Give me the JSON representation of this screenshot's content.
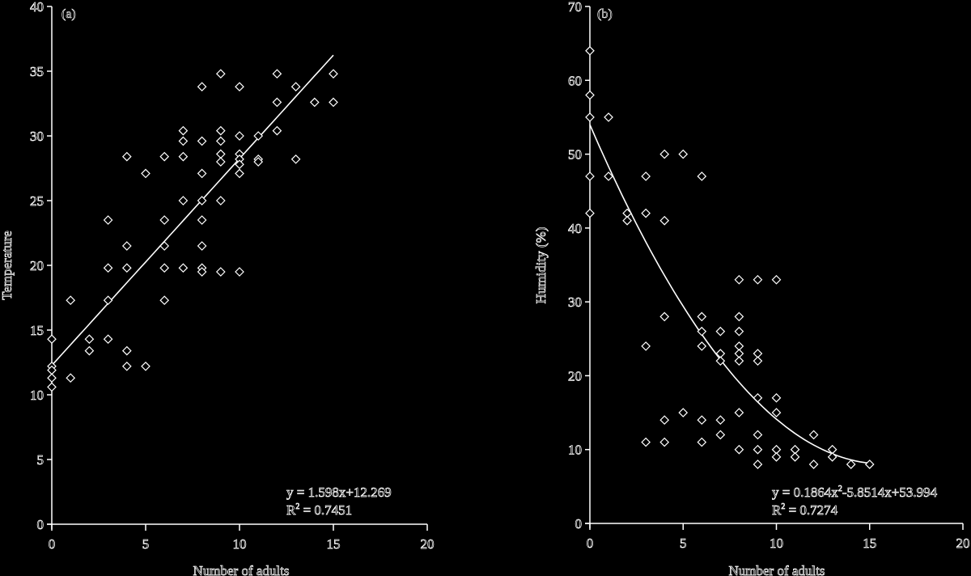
{
  "chart_data": [
    {
      "type": "scatter",
      "panel": "(a)",
      "title": "",
      "xlabel": "Number of adults",
      "ylabel": "Temperature",
      "xlim": [
        0,
        20
      ],
      "ylim": [
        0,
        40
      ],
      "xticks": [
        0,
        5,
        10,
        15,
        20
      ],
      "yticks": [
        0,
        5,
        10,
        15,
        20,
        25,
        30,
        35,
        40
      ],
      "grid": false,
      "marker": "diamond",
      "points": [
        [
          0,
          14.3
        ],
        [
          0,
          12.2
        ],
        [
          0,
          11.9
        ],
        [
          0,
          11.3
        ],
        [
          0,
          10.6
        ],
        [
          1,
          17.3
        ],
        [
          1,
          11.3
        ],
        [
          2,
          14.3
        ],
        [
          2,
          13.4
        ],
        [
          3,
          23.5
        ],
        [
          3,
          19.8
        ],
        [
          3,
          17.3
        ],
        [
          3,
          14.3
        ],
        [
          4,
          28.4
        ],
        [
          4,
          21.5
        ],
        [
          4,
          19.8
        ],
        [
          4,
          13.4
        ],
        [
          4,
          12.2
        ],
        [
          5,
          27.1
        ],
        [
          5,
          12.2
        ],
        [
          6,
          28.4
        ],
        [
          6,
          23.5
        ],
        [
          6,
          21.5
        ],
        [
          6,
          19.8
        ],
        [
          6,
          17.3
        ],
        [
          7,
          30.4
        ],
        [
          7,
          29.6
        ],
        [
          7,
          28.4
        ],
        [
          7,
          25.0
        ],
        [
          7,
          19.8
        ],
        [
          8,
          33.8
        ],
        [
          8,
          29.6
        ],
        [
          8,
          27.1
        ],
        [
          8,
          25.0
        ],
        [
          8,
          23.5
        ],
        [
          8,
          21.5
        ],
        [
          8,
          19.8
        ],
        [
          8,
          19.5
        ],
        [
          9,
          34.8
        ],
        [
          9,
          30.4
        ],
        [
          9,
          29.6
        ],
        [
          9,
          28.6
        ],
        [
          9,
          28.0
        ],
        [
          9,
          25.0
        ],
        [
          9,
          19.5
        ],
        [
          10,
          33.8
        ],
        [
          10,
          30.0
        ],
        [
          10,
          28.6
        ],
        [
          10,
          28.2
        ],
        [
          10,
          27.8
        ],
        [
          10,
          27.1
        ],
        [
          10,
          19.5
        ],
        [
          11,
          30.0
        ],
        [
          11,
          28.2
        ],
        [
          11,
          28.0
        ],
        [
          12,
          34.8
        ],
        [
          12,
          32.6
        ],
        [
          12,
          30.4
        ],
        [
          13,
          33.8
        ],
        [
          13,
          28.2
        ],
        [
          14,
          32.6
        ],
        [
          15,
          34.8
        ],
        [
          15,
          32.6
        ]
      ],
      "fit": {
        "kind": "linear",
        "a": 1.598,
        "b": 12.269,
        "x_range": [
          0,
          15
        ]
      },
      "annotation": {
        "equation": "y = 1.598x+12.269",
        "r2_prefix": "R",
        "r2_sup": "2",
        "r2_value": " = 0.7451"
      }
    },
    {
      "type": "scatter",
      "panel": "(b)",
      "title": "",
      "xlabel": "Number of adults",
      "ylabel": "Humidity (%)",
      "xlim": [
        0,
        20
      ],
      "ylim": [
        0,
        70
      ],
      "xticks": [
        0,
        5,
        10,
        15,
        20
      ],
      "yticks": [
        0,
        10,
        20,
        30,
        40,
        50,
        60,
        70
      ],
      "grid": false,
      "marker": "diamond",
      "points": [
        [
          0,
          64
        ],
        [
          0,
          58
        ],
        [
          0,
          55
        ],
        [
          0,
          47
        ],
        [
          0,
          42
        ],
        [
          1,
          55
        ],
        [
          1,
          47
        ],
        [
          2,
          42
        ],
        [
          2,
          41
        ],
        [
          3,
          47
        ],
        [
          3,
          42
        ],
        [
          3,
          24
        ],
        [
          3,
          11
        ],
        [
          4,
          50
        ],
        [
          4,
          41
        ],
        [
          4,
          28
        ],
        [
          4,
          14
        ],
        [
          4,
          11
        ],
        [
          5,
          50
        ],
        [
          5,
          15
        ],
        [
          6,
          47
        ],
        [
          6,
          28
        ],
        [
          6,
          26
        ],
        [
          6,
          24
        ],
        [
          6,
          14
        ],
        [
          6,
          11
        ],
        [
          7,
          26
        ],
        [
          7,
          23
        ],
        [
          7,
          22
        ],
        [
          7,
          14
        ],
        [
          7,
          12
        ],
        [
          8,
          33
        ],
        [
          8,
          28
        ],
        [
          8,
          26
        ],
        [
          8,
          24
        ],
        [
          8,
          23
        ],
        [
          8,
          22
        ],
        [
          8,
          15
        ],
        [
          8,
          10
        ],
        [
          9,
          33
        ],
        [
          9,
          23
        ],
        [
          9,
          22
        ],
        [
          9,
          17
        ],
        [
          9,
          12
        ],
        [
          9,
          10
        ],
        [
          9,
          8
        ],
        [
          10,
          33
        ],
        [
          10,
          17
        ],
        [
          10,
          15
        ],
        [
          10,
          10
        ],
        [
          10,
          9
        ],
        [
          11,
          10
        ],
        [
          11,
          9
        ],
        [
          12,
          12
        ],
        [
          12,
          8
        ],
        [
          13,
          10
        ],
        [
          13,
          9
        ],
        [
          14,
          8
        ],
        [
          15,
          8
        ]
      ],
      "fit": {
        "kind": "quadratic",
        "a": 0.1864,
        "b": -5.8514,
        "c": 53.994,
        "x_range": [
          0,
          15
        ]
      },
      "annotation": {
        "equation_prefix": "y = 0.1864x",
        "equation_sup": "2",
        "equation_suffix": "-5.8514x+53.994",
        "r2_prefix": "R",
        "r2_sup": "2",
        "r2_value": " = 0.7274"
      }
    }
  ],
  "labels": {
    "a": {
      "panel": "(a)",
      "xlabel": "Number of adults",
      "ylabel": "Temperature",
      "eq": "y = 1.598x+12.269",
      "r2_prefix": "R",
      "r2_sup": "2",
      "r2_value": " = 0.7451"
    },
    "b": {
      "panel": "(b)",
      "xlabel": "Number of adults",
      "ylabel": "Humidity (%)",
      "eq_prefix": "y = 0.1864x",
      "eq_sup": "2",
      "eq_suffix": "-5.8514x+53.994",
      "r2_prefix": "R",
      "r2_sup": "2",
      "r2_value": " = 0.7274"
    }
  }
}
